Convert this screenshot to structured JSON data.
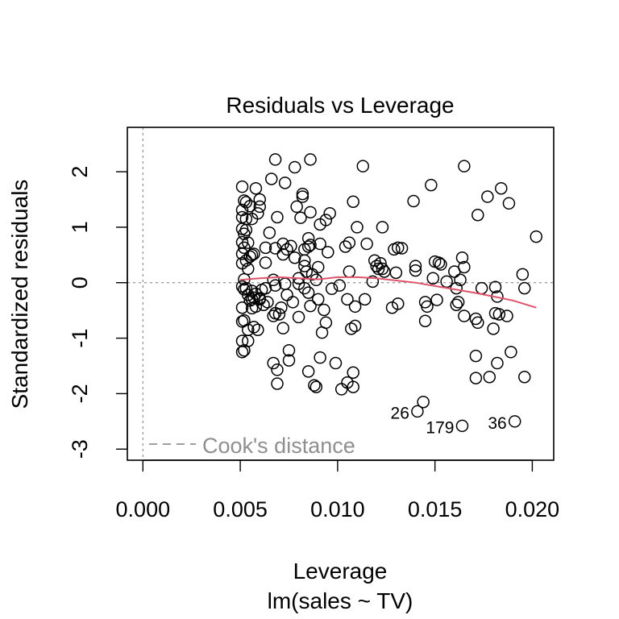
{
  "chart_data": {
    "type": "scatter",
    "title": "Residuals vs Leverage",
    "xlabel": "Leverage",
    "subtitle": "lm(sales ~ TV)",
    "ylabel": "Standardized residuals",
    "xlim": [
      -0.0008,
      0.0211
    ],
    "ylim": [
      -3.2,
      2.8
    ],
    "x_ticks": [
      "0.000",
      "0.005",
      "0.010",
      "0.015",
      "0.020"
    ],
    "x_tick_values": [
      0.0,
      0.005,
      0.01,
      0.015,
      0.02
    ],
    "y_ticks": [
      "-3",
      "-2",
      "-1",
      "0",
      "1",
      "2"
    ],
    "y_tick_values": [
      -3,
      -2,
      -1,
      0,
      1,
      2
    ],
    "legend": {
      "label": "Cook's distance",
      "position": "bottom-left"
    },
    "reference_lines": {
      "h": 0,
      "v": 0
    },
    "colors": {
      "points": "#000000",
      "smooth": "#DF536B",
      "reference": "#9E9E9E",
      "legend_text": "#8F8F8F"
    },
    "points": [
      [
        0.0051,
        1.73
      ],
      [
        0.0051,
        1.31
      ],
      [
        0.0051,
        1.18
      ],
      [
        0.0051,
        0.97
      ],
      [
        0.0051,
        0.73
      ],
      [
        0.0051,
        0.52
      ],
      [
        0.0051,
        0.35
      ],
      [
        0.0051,
        -0.07
      ],
      [
        0.0051,
        -0.45
      ],
      [
        0.0051,
        -0.7
      ],
      [
        0.0051,
        -1.05
      ],
      [
        0.0051,
        -1.25
      ],
      [
        0.0052,
        1.48
      ],
      [
        0.0052,
        0.88
      ],
      [
        0.0052,
        0.63
      ],
      [
        0.0052,
        0.06
      ],
      [
        0.0052,
        -0.12
      ],
      [
        0.0052,
        -0.68
      ],
      [
        0.0052,
        -1.22
      ],
      [
        0.0053,
        1.45
      ],
      [
        0.0053,
        1.15
      ],
      [
        0.0053,
        0.95
      ],
      [
        0.0053,
        0.4
      ],
      [
        0.0053,
        -0.1
      ],
      [
        0.0054,
        0.72
      ],
      [
        0.0054,
        0.25
      ],
      [
        0.0054,
        -0.22
      ],
      [
        0.0054,
        -0.85
      ],
      [
        0.0054,
        -1.05
      ],
      [
        0.0055,
        1.38
      ],
      [
        0.0055,
        0.47
      ],
      [
        0.0055,
        -0.32
      ],
      [
        0.0056,
        1.15
      ],
      [
        0.0056,
        0.5
      ],
      [
        0.0056,
        -0.15
      ],
      [
        0.0056,
        -0.3
      ],
      [
        0.0056,
        -0.46
      ],
      [
        0.0057,
        0.52
      ],
      [
        0.0057,
        -0.27
      ],
      [
        0.0057,
        -0.8
      ],
      [
        0.0058,
        1.7
      ],
      [
        0.0058,
        -0.2
      ],
      [
        0.0058,
        -0.43
      ],
      [
        0.0059,
        1.25
      ],
      [
        0.0059,
        -0.85
      ],
      [
        0.006,
        1.5
      ],
      [
        0.006,
        1.37
      ],
      [
        0.006,
        -0.28
      ],
      [
        0.006,
        -0.3
      ],
      [
        0.0061,
        -0.13
      ],
      [
        0.0062,
        -0.4
      ],
      [
        0.0063,
        0.63
      ],
      [
        0.0063,
        0.36
      ],
      [
        0.0063,
        -0.1
      ],
      [
        0.0064,
        -0.35
      ],
      [
        0.0065,
        0.9
      ],
      [
        0.0066,
        1.87
      ],
      [
        0.0067,
        0.05
      ],
      [
        0.0067,
        -0.6
      ],
      [
        0.0067,
        -1.45
      ],
      [
        0.0068,
        2.22
      ],
      [
        0.0068,
        0.62
      ],
      [
        0.0068,
        -0.05
      ],
      [
        0.0068,
        -0.55
      ],
      [
        0.0069,
        1.18
      ],
      [
        0.0069,
        -1.57
      ],
      [
        0.0069,
        -1.82
      ],
      [
        0.007,
        -0.57
      ],
      [
        0.0071,
        -0.45
      ],
      [
        0.0072,
        0.7
      ],
      [
        0.0072,
        0.51
      ],
      [
        0.0072,
        -0.82
      ],
      [
        0.0073,
        1.8
      ],
      [
        0.0073,
        -0.02
      ],
      [
        0.0074,
        0.6
      ],
      [
        0.0074,
        -0.22
      ],
      [
        0.0075,
        -1.22
      ],
      [
        0.0075,
        -1.4
      ],
      [
        0.0076,
        0.66
      ],
      [
        0.0077,
        -0.35
      ],
      [
        0.0078,
        2.08
      ],
      [
        0.0078,
        0.45
      ],
      [
        0.0079,
        1.37
      ],
      [
        0.008,
        0.08
      ],
      [
        0.008,
        -0.02
      ],
      [
        0.008,
        -0.62
      ],
      [
        0.0081,
        1.17
      ],
      [
        0.0082,
        1.6
      ],
      [
        0.0082,
        1.55
      ],
      [
        0.0083,
        0.6
      ],
      [
        0.0083,
        0.4
      ],
      [
        0.0083,
        0.3
      ],
      [
        0.0083,
        -0.1
      ],
      [
        0.0084,
        0.2
      ],
      [
        0.0085,
        0.8
      ],
      [
        0.0085,
        0.65
      ],
      [
        0.0085,
        -0.18
      ],
      [
        0.0085,
        -1.6
      ],
      [
        0.0086,
        2.22
      ],
      [
        0.0086,
        1.27
      ],
      [
        0.0086,
        0.68
      ],
      [
        0.0086,
        -0.42
      ],
      [
        0.0087,
        0.15
      ],
      [
        0.0088,
        -1.85
      ],
      [
        0.0089,
        0.05
      ],
      [
        0.0089,
        -1.88
      ],
      [
        0.009,
        0.28
      ],
      [
        0.009,
        -0.3
      ],
      [
        0.0091,
        1.05
      ],
      [
        0.0091,
        0.7
      ],
      [
        0.0091,
        -1.35
      ],
      [
        0.0092,
        -0.9
      ],
      [
        0.0093,
        -0.49
      ],
      [
        0.0094,
        1.13
      ],
      [
        0.0094,
        -0.72
      ],
      [
        0.0095,
        0.55
      ],
      [
        0.0096,
        1.25
      ],
      [
        0.0097,
        -0.11
      ],
      [
        0.0099,
        -1.45
      ],
      [
        0.0101,
        -0.05
      ],
      [
        0.0102,
        -1.92
      ],
      [
        0.0104,
        0.65
      ],
      [
        0.0105,
        -1.8
      ],
      [
        0.0105,
        -0.3
      ],
      [
        0.0106,
        0.72
      ],
      [
        0.0106,
        0.2
      ],
      [
        0.0107,
        -0.83
      ],
      [
        0.0108,
        1.46
      ],
      [
        0.0108,
        -1.88
      ],
      [
        0.0108,
        -1.62
      ],
      [
        0.0109,
        -0.43
      ],
      [
        0.0109,
        -0.78
      ],
      [
        0.011,
        1.0
      ],
      [
        0.0113,
        2.1
      ],
      [
        0.0114,
        -0.3
      ],
      [
        0.0115,
        0.7
      ],
      [
        0.0118,
        0.02
      ],
      [
        0.0119,
        0.4
      ],
      [
        0.012,
        0.3
      ],
      [
        0.0121,
        0.25
      ],
      [
        0.0122,
        0.35
      ],
      [
        0.0123,
        1.0
      ],
      [
        0.0123,
        0.25
      ],
      [
        0.0124,
        0.2
      ],
      [
        0.0128,
        -0.45
      ],
      [
        0.0129,
        0.6
      ],
      [
        0.013,
        0.18
      ],
      [
        0.0131,
        -0.38
      ],
      [
        0.0131,
        0.63
      ],
      [
        0.0133,
        0.62
      ],
      [
        0.0139,
        1.47
      ],
      [
        0.014,
        0.3
      ],
      [
        0.014,
        0.22
      ],
      [
        0.0141,
        -2.32
      ],
      [
        0.0144,
        -2.15
      ],
      [
        0.0145,
        -0.35
      ],
      [
        0.0145,
        -0.69
      ],
      [
        0.0146,
        -0.43
      ],
      [
        0.0148,
        1.76
      ],
      [
        0.0149,
        0.08
      ],
      [
        0.015,
        0.38
      ],
      [
        0.0151,
        -0.31
      ],
      [
        0.0152,
        0.36
      ],
      [
        0.0153,
        0.33
      ],
      [
        0.0156,
        0.02
      ],
      [
        0.016,
        0.2
      ],
      [
        0.0161,
        -0.1
      ],
      [
        0.0161,
        -0.4
      ],
      [
        0.0162,
        -0.35
      ],
      [
        0.0163,
        0.05
      ],
      [
        0.0164,
        -2.58
      ],
      [
        0.0164,
        0.45
      ],
      [
        0.0165,
        2.1
      ],
      [
        0.0165,
        0.28
      ],
      [
        0.0165,
        -0.6
      ],
      [
        0.0171,
        -1.72
      ],
      [
        0.0171,
        -1.32
      ],
      [
        0.0171,
        -0.65
      ],
      [
        0.0172,
        1.22
      ],
      [
        0.0172,
        -0.72
      ],
      [
        0.0174,
        -0.1
      ],
      [
        0.0177,
        1.55
      ],
      [
        0.0178,
        -1.7
      ],
      [
        0.018,
        -0.83
      ],
      [
        0.0181,
        -0.08
      ],
      [
        0.0181,
        -0.55
      ],
      [
        0.0182,
        -1.45
      ],
      [
        0.0182,
        -0.25
      ],
      [
        0.0183,
        -0.57
      ],
      [
        0.0184,
        1.7
      ],
      [
        0.0187,
        -0.6
      ],
      [
        0.0188,
        1.43
      ],
      [
        0.0189,
        -1.25
      ],
      [
        0.0191,
        -2.5
      ],
      [
        0.0195,
        0.15
      ],
      [
        0.0196,
        -0.1
      ],
      [
        0.0196,
        -1.7
      ],
      [
        0.0202,
        0.83
      ]
    ],
    "smooth_line": [
      [
        0.005,
        0.05
      ],
      [
        0.006,
        0.08
      ],
      [
        0.007,
        0.1
      ],
      [
        0.008,
        0.08
      ],
      [
        0.009,
        0.06
      ],
      [
        0.01,
        0.1
      ],
      [
        0.011,
        0.1
      ],
      [
        0.012,
        0.08
      ],
      [
        0.013,
        0.04
      ],
      [
        0.014,
        0.0
      ],
      [
        0.015,
        -0.06
      ],
      [
        0.016,
        -0.12
      ],
      [
        0.017,
        -0.18
      ],
      [
        0.018,
        -0.25
      ],
      [
        0.019,
        -0.32
      ],
      [
        0.0202,
        -0.45
      ]
    ],
    "point_labels": [
      {
        "label": "26",
        "x": 0.0141,
        "y": -2.32,
        "anchor": "end"
      },
      {
        "label": "179",
        "x": 0.0164,
        "y": -2.58,
        "anchor": "end"
      },
      {
        "label": "36",
        "x": 0.0191,
        "y": -2.5,
        "anchor": "end"
      }
    ]
  }
}
